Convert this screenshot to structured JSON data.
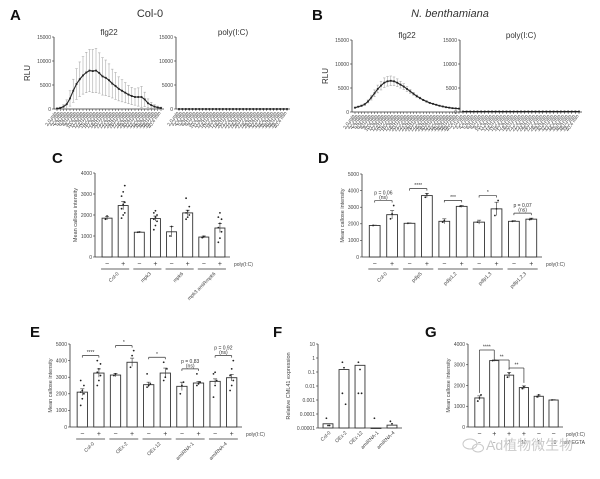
{
  "watermark": "Ad植物微生物",
  "chart_data": [
    {
      "id": "A",
      "panel_label": "A",
      "title": "Col-0",
      "type": "line",
      "subplots": [
        {
          "subtitle": "flg22",
          "ylabel": "RLU",
          "ylim": [
            0,
            15000
          ],
          "yticks": [
            0,
            5000,
            10000,
            15000
          ],
          "x_tick_labels": [
            "2 min",
            "4 min",
            "6 min",
            "8 min",
            "10 min",
            "12 min",
            "14 min",
            "16 min",
            "18 min",
            "20 min",
            "22 min",
            "24 min",
            "26 min",
            "28 min",
            "30 min",
            "32 min",
            "34 min",
            "36 min",
            "38 min",
            "40 min"
          ],
          "values": [
            100,
            200,
            500,
            1000,
            2200,
            3800,
            5200,
            6200,
            7000,
            7600,
            8000,
            7900,
            8000,
            7500,
            6800,
            6500,
            6000,
            5300,
            4800,
            4200,
            3800,
            3400,
            3000,
            2700,
            2500,
            2500,
            2500,
            2000,
            1200,
            800,
            500,
            300,
            200
          ],
          "errors": [
            100,
            200,
            400,
            900,
            1600,
            2400,
            3200,
            3600,
            3900,
            4200,
            4400,
            4500,
            4600,
            4200,
            3900,
            3700,
            3400,
            3000,
            2800,
            2500,
            2300,
            2100,
            1900,
            1800,
            1700,
            1900,
            2200,
            1500,
            900,
            600,
            400,
            300,
            200
          ]
        },
        {
          "subtitle": "poly(I:C)",
          "ylim": [
            0,
            15000
          ],
          "yticks": [
            0,
            5000,
            10000,
            15000
          ],
          "values": [
            0,
            0,
            0,
            0,
            0,
            0,
            0,
            0,
            0,
            0,
            0,
            0,
            0,
            0,
            0,
            0,
            0,
            0,
            0,
            0,
            0,
            0,
            0,
            0,
            0,
            0,
            0,
            0,
            0,
            0,
            0,
            0,
            0
          ],
          "errors": []
        }
      ]
    },
    {
      "id": "B",
      "panel_label": "B",
      "title": "N. benthamiana",
      "type": "line",
      "subplots": [
        {
          "subtitle": "flg22",
          "ylabel": "RLU",
          "ylim": [
            0,
            15000
          ],
          "yticks": [
            0,
            5000,
            10000,
            15000
          ],
          "values": [
            900,
            1100,
            1300,
            1600,
            2200,
            3000,
            3900,
            4800,
            5500,
            6100,
            6400,
            6500,
            6400,
            6100,
            5700,
            5300,
            4800,
            4300,
            3800,
            3300,
            2900,
            2500,
            2200,
            1900,
            1700,
            1500,
            1300,
            1150,
            1000,
            900,
            800,
            750,
            700
          ],
          "errors": [
            100,
            100,
            150,
            200,
            300,
            500,
            700,
            800,
            900,
            1000,
            1000,
            1000,
            900,
            800,
            700,
            600,
            500,
            400,
            300,
            250,
            200,
            150,
            120,
            100,
            100,
            80,
            80,
            60,
            60,
            50,
            50,
            50,
            50
          ]
        },
        {
          "subtitle": "poly(I:C)",
          "ylim": [
            0,
            15000
          ],
          "yticks": [
            0,
            5000,
            10000,
            15000
          ],
          "values": [
            100,
            100,
            100,
            100,
            100,
            100,
            100,
            100,
            100,
            100,
            100,
            100,
            100,
            100,
            100,
            100,
            100,
            100,
            100,
            100,
            100,
            100,
            100,
            100,
            100,
            100,
            100,
            100,
            100,
            100,
            100,
            100,
            100
          ],
          "errors": []
        }
      ]
    },
    {
      "id": "C",
      "panel_label": "C",
      "type": "bar",
      "ylabel": "Mean callose intensity",
      "ylim": [
        0,
        4000
      ],
      "yticks": [
        0,
        1000,
        2000,
        3000,
        4000
      ],
      "treatment_label": "poly(I:C)",
      "groups": [
        "Col-0",
        "mpk3",
        "mpk6",
        "mpk3 amiRmpk6"
      ],
      "treatment": [
        "−",
        "+",
        "−",
        "+",
        "−",
        "+",
        "−",
        "+"
      ],
      "values": [
        1850,
        2450,
        1180,
        1830,
        1200,
        2100,
        950,
        1380
      ],
      "errors": [
        90,
        200,
        20,
        120,
        250,
        130,
        50,
        220
      ],
      "points": [
        [
          1800,
          1950
        ],
        [
          1850,
          2000,
          2100,
          2300,
          2500,
          2600,
          2900,
          3100,
          3400
        ],
        [
          1180,
          1190
        ],
        [
          1300,
          1500,
          1700,
          1800,
          1900,
          2000,
          2100,
          2200
        ],
        [
          1000,
          1450
        ],
        [
          1800,
          1900,
          2000,
          2100,
          2200,
          2400,
          2800
        ],
        [
          920,
          980
        ],
        [
          700,
          900,
          1200,
          1400,
          1600,
          1800,
          1900,
          2100
        ]
      ],
      "significance": []
    },
    {
      "id": "D",
      "panel_label": "D",
      "type": "bar",
      "ylabel": "Mean callose intensity",
      "ylim": [
        0,
        5000
      ],
      "yticks": [
        0,
        1000,
        2000,
        3000,
        4000,
        5000
      ],
      "treatment_label": "poly(I:C)",
      "groups": [
        "Col-0",
        "pdlp5",
        "pdlp1,2",
        "pdlp1,3",
        "pdlp1,2,3"
      ],
      "treatment": [
        "−",
        "+",
        "−",
        "+",
        "−",
        "+",
        "−",
        "+",
        "−",
        "+"
      ],
      "values": [
        1900,
        2550,
        2030,
        3700,
        2150,
        3050,
        2100,
        2900,
        2150,
        2280
      ],
      "errors": [
        20,
        250,
        20,
        120,
        150,
        60,
        120,
        400,
        40,
        60
      ],
      "points": [
        [
          1900
        ],
        [
          2300,
          2600,
          3100
        ],
        [
          2030
        ],
        [
          3600,
          3800
        ],
        [
          2100,
          2200
        ],
        [
          3050
        ],
        [
          2100
        ],
        [
          2500,
          2900,
          3400
        ],
        [
          2150
        ],
        [
          2250,
          2300
        ]
      ],
      "significance": [
        "p = 0.06 (ns)",
        "****",
        "***",
        "*",
        "p = 0.07 (ns)"
      ]
    },
    {
      "id": "E",
      "panel_label": "E",
      "type": "bar",
      "ylabel": "Mean callose intensity",
      "ylim": [
        0,
        5000
      ],
      "yticks": [
        0,
        1000,
        2000,
        3000,
        4000,
        5000
      ],
      "treatment_label": "poly(I:C)",
      "groups": [
        "Col-0",
        "OEx-2",
        "OEx-12",
        "amiRNA-1",
        "amiRNA-4"
      ],
      "treatment": [
        "−",
        "+",
        "−",
        "+",
        "−",
        "+",
        "−",
        "+",
        "−",
        "+"
      ],
      "values": [
        2100,
        3250,
        3130,
        3900,
        2550,
        3250,
        2450,
        2650,
        2750,
        2970
      ],
      "errors": [
        200,
        250,
        100,
        250,
        150,
        300,
        250,
        100,
        150,
        200
      ],
      "points": [
        [
          1300,
          1700,
          2000,
          2100,
          2200,
          2500,
          2800
        ],
        [
          2500,
          2800,
          3100,
          3300,
          3500,
          3800,
          4000
        ],
        [
          3100,
          3200
        ],
        [
          3600,
          4300,
          4600
        ],
        [
          2400,
          2500,
          2600,
          3200
        ],
        [
          2800,
          3000,
          3500,
          3900
        ],
        [
          2000,
          2500,
          2700
        ],
        [
          2500,
          2600,
          2700,
          3200
        ],
        [
          1800,
          2500,
          2800,
          3200,
          3300
        ],
        [
          2200,
          2500,
          2800,
          3100,
          3500,
          4000
        ]
      ],
      "significance": [
        "****",
        "*",
        "*",
        "p = 0.83 (ns)",
        "p = 0.92 (ns)"
      ]
    },
    {
      "id": "F",
      "panel_label": "F",
      "type": "bar",
      "yscale": "log",
      "ylabel": "Relative CML41 expression",
      "ylim": [
        1e-05,
        10
      ],
      "yticks": [
        "0.00001",
        "0.0001",
        "0.001",
        "0.01",
        "0.1",
        "1",
        "10"
      ],
      "categories": [
        "Col-0",
        "OEx-2",
        "OEx-12",
        "amiRNA-1",
        "amiRNA-4"
      ],
      "values": [
        2e-05,
        0.15,
        0.3,
        1e-05,
        1.6e-05
      ],
      "points": [
        [
          5e-05,
          1.5e-05,
          1.5e-05
        ],
        [
          0.5,
          0.2,
          0.0005,
          0.003
        ],
        [
          0.5,
          0.15,
          0.003,
          0.003
        ],
        [
          5e-05
        ],
        [
          3e-05,
          2e-05
        ]
      ]
    },
    {
      "id": "G",
      "panel_label": "G",
      "type": "bar",
      "ylabel": "Mean callose intensity",
      "ylim": [
        0,
        4000
      ],
      "yticks": [
        0,
        1000,
        2000,
        3000,
        4000
      ],
      "row_labels": [
        "poly(I:C)",
        "mM EGTA"
      ],
      "treatment_polyIC": [
        "−",
        "+",
        "+",
        "+",
        "−",
        "−"
      ],
      "treatment_egta": [
        "−",
        "−",
        "1",
        "10",
        "1",
        "10"
      ],
      "values": [
        1400,
        3200,
        2500,
        1900,
        1480,
        1300
      ],
      "errors": [
        100,
        30,
        120,
        80,
        60,
        20
      ],
      "points": [
        [
          1250,
          1400,
          1550
        ],
        [
          3200
        ],
        [
          2400,
          2600
        ],
        [
          1850,
          1950
        ],
        [
          1450,
          1550
        ],
        [
          1300
        ]
      ],
      "significance": [
        {
          "from": 0,
          "to": 1,
          "label": "****"
        },
        {
          "from": 1,
          "to": 2,
          "label": "**"
        },
        {
          "from": 2,
          "to": 3,
          "label": "**"
        }
      ]
    }
  ]
}
